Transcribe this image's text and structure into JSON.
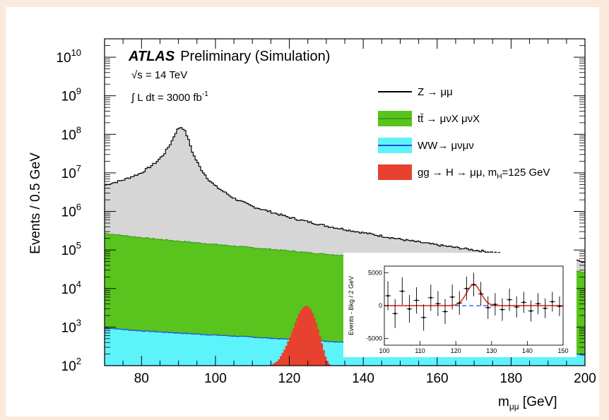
{
  "chart_data": {
    "type": "area",
    "title": "",
    "xlabel": "m",
    "xlabel_sub": "μμ",
    "xlabel_unit": " [GeV]",
    "ylabel": "Events / 0.5 GeV",
    "xlim": [
      70,
      200
    ],
    "ylim": [
      100,
      30000000000
    ],
    "y_scale": "log",
    "x_ticks": [
      "80",
      "100",
      "120",
      "140",
      "160",
      "180",
      "200"
    ],
    "y_ticks": [
      {
        "base": "10",
        "exp": "2"
      },
      {
        "base": "10",
        "exp": "3"
      },
      {
        "base": "10",
        "exp": "4"
      },
      {
        "base": "10",
        "exp": "5"
      },
      {
        "base": "10",
        "exp": "6"
      },
      {
        "base": "10",
        "exp": "7"
      },
      {
        "base": "10",
        "exp": "8"
      },
      {
        "base": "10",
        "exp": "9"
      },
      {
        "base": "10",
        "exp": "10"
      }
    ],
    "annotations": {
      "atlas": "ATLAS",
      "preliminary": "Preliminary (Simulation)",
      "sqrt_s": "√s = 14 TeV",
      "lumi": "∫ L dt = 3000 fb",
      "lumi_exp": "-1"
    },
    "legend_position": "top-right",
    "legend": [
      {
        "label": "Z → μμ",
        "type": "line",
        "color": "#000000",
        "fill": "#d6d6d6"
      },
      {
        "label": "tt̄ → μνX μνX",
        "type": "box",
        "color": "#3f9c19",
        "fill": "#58c41d"
      },
      {
        "label": "WW→ μνμν",
        "type": "box",
        "color": "#1e4fd6",
        "fill": "#5df3fb"
      },
      {
        "label": "gg → H → μμ, m",
        "label_sub": "H",
        "label_tail": "=125 GeV",
        "type": "box",
        "color": "#e8412f",
        "fill": "#e8412f"
      }
    ],
    "series": [
      {
        "name": "Z → μμ",
        "color": "#d6d6d6",
        "x": [
          70,
          75,
          80,
          84,
          86,
          88,
          89,
          90,
          91,
          92,
          93,
          94,
          96,
          98,
          100,
          105,
          110,
          120,
          130,
          140,
          150,
          160,
          170,
          180,
          190,
          200
        ],
        "values": [
          4800000,
          6500000,
          10000000,
          19000000,
          30000000,
          60000000,
          100000000,
          145000000,
          155000000,
          110000000,
          60000000,
          30000000,
          13000000,
          7000000,
          4500000,
          2200000,
          1350000,
          700000,
          420000,
          280000,
          190000,
          135000,
          100000,
          75000,
          60000,
          50000
        ]
      },
      {
        "name": "tt̄ → μνX μνX",
        "color": "#58c41d",
        "x": [
          70,
          80,
          90,
          100,
          110,
          120,
          130,
          140,
          150,
          160,
          170,
          180,
          190,
          200
        ],
        "values": [
          270000,
          210000,
          170000,
          140000,
          115000,
          95000,
          78000,
          65000,
          55000,
          47000,
          40000,
          35000,
          30000,
          27000
        ]
      },
      {
        "name": "WW→ μνμν",
        "color": "#5df3fb",
        "x": [
          70,
          80,
          90,
          100,
          110,
          120,
          130,
          140,
          150,
          160,
          170,
          180,
          190,
          200
        ],
        "values": [
          950,
          800,
          700,
          620,
          550,
          480,
          430,
          380,
          340,
          300,
          270,
          240,
          215,
          190
        ]
      },
      {
        "name": "gg → H → μμ, m_H=125 GeV",
        "color": "#e8412f",
        "x": [
          115,
          117,
          119,
          121,
          122,
          123,
          124,
          124.5,
          125,
          126,
          127,
          128,
          129,
          130,
          131
        ],
        "values": [
          100,
          130,
          280,
          800,
          1500,
          2500,
          3300,
          3500,
          3400,
          2600,
          1500,
          700,
          300,
          140,
          100
        ]
      }
    ],
    "inset": {
      "type": "scatter",
      "xlim": [
        100,
        150
      ],
      "ylim": [
        -6000,
        6000
      ],
      "ylabel": "Events - Bkg / 2 GeV",
      "x_ticks": [
        "100",
        "110",
        "120",
        "130",
        "140",
        "150"
      ],
      "y_ticks": [
        "5000",
        "0",
        "-5000"
      ],
      "points": {
        "x": [
          101,
          103,
          105,
          107,
          109,
          111,
          113,
          115,
          117,
          119,
          121,
          123,
          125,
          127,
          129,
          131,
          133,
          135,
          137,
          139,
          141,
          143,
          145,
          147,
          149
        ],
        "y": [
          1500,
          -1200,
          2200,
          -500,
          800,
          -1800,
          1200,
          300,
          -900,
          1300,
          400,
          2600,
          3200,
          1800,
          -300,
          200,
          -600,
          900,
          -200,
          500,
          -800,
          300,
          -400,
          600,
          -100
        ],
        "err": [
          2200,
          2200,
          2100,
          2100,
          2000,
          2000,
          2000,
          1900,
          1900,
          1900,
          1800,
          1800,
          1800,
          1800,
          1700,
          1700,
          1700,
          1700,
          1600,
          1600,
          1600,
          1600,
          1500,
          1500,
          1500
        ]
      },
      "fit": {
        "color": "#e8412f",
        "mean": 125,
        "sigma": 2.0,
        "amplitude": 3200
      },
      "baseline": {
        "color": "#1e4fd6",
        "value": 0
      }
    }
  }
}
